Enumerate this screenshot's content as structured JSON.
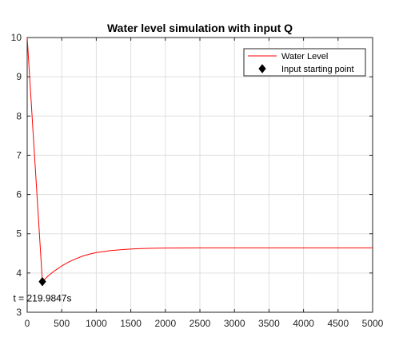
{
  "chart_data": {
    "type": "line",
    "title": "Water level simulation with input Q",
    "xlabel": "",
    "ylabel": "",
    "xlim": [
      0,
      5000
    ],
    "ylim": [
      3,
      10
    ],
    "xticks": [
      0,
      500,
      1000,
      1500,
      2000,
      2500,
      3000,
      3500,
      4000,
      4500,
      5000
    ],
    "yticks": [
      3,
      4,
      5,
      6,
      7,
      8,
      9,
      10
    ],
    "grid": true,
    "legend_position": "top-right",
    "series": [
      {
        "name": "Water Level",
        "color": "#ff0000",
        "style": "line",
        "x": [
          0,
          219.9847,
          300,
          400,
          500,
          600,
          700,
          800,
          900,
          1000,
          1200,
          1400,
          1600,
          1800,
          2000,
          2500,
          3000,
          3500,
          4000,
          4500,
          5000
        ],
        "y": [
          10,
          3.78,
          3.92,
          4.06,
          4.18,
          4.28,
          4.36,
          4.43,
          4.48,
          4.52,
          4.57,
          4.6,
          4.62,
          4.63,
          4.635,
          4.64,
          4.64,
          4.64,
          4.64,
          4.64,
          4.64
        ]
      },
      {
        "name": "Input starting point",
        "color": "#000000",
        "style": "marker-diamond",
        "x": [
          219.9847
        ],
        "y": [
          3.78
        ]
      }
    ],
    "annotations": [
      {
        "text": "t = 219.9847s",
        "x": 219.9847,
        "y": 3.78
      }
    ]
  }
}
